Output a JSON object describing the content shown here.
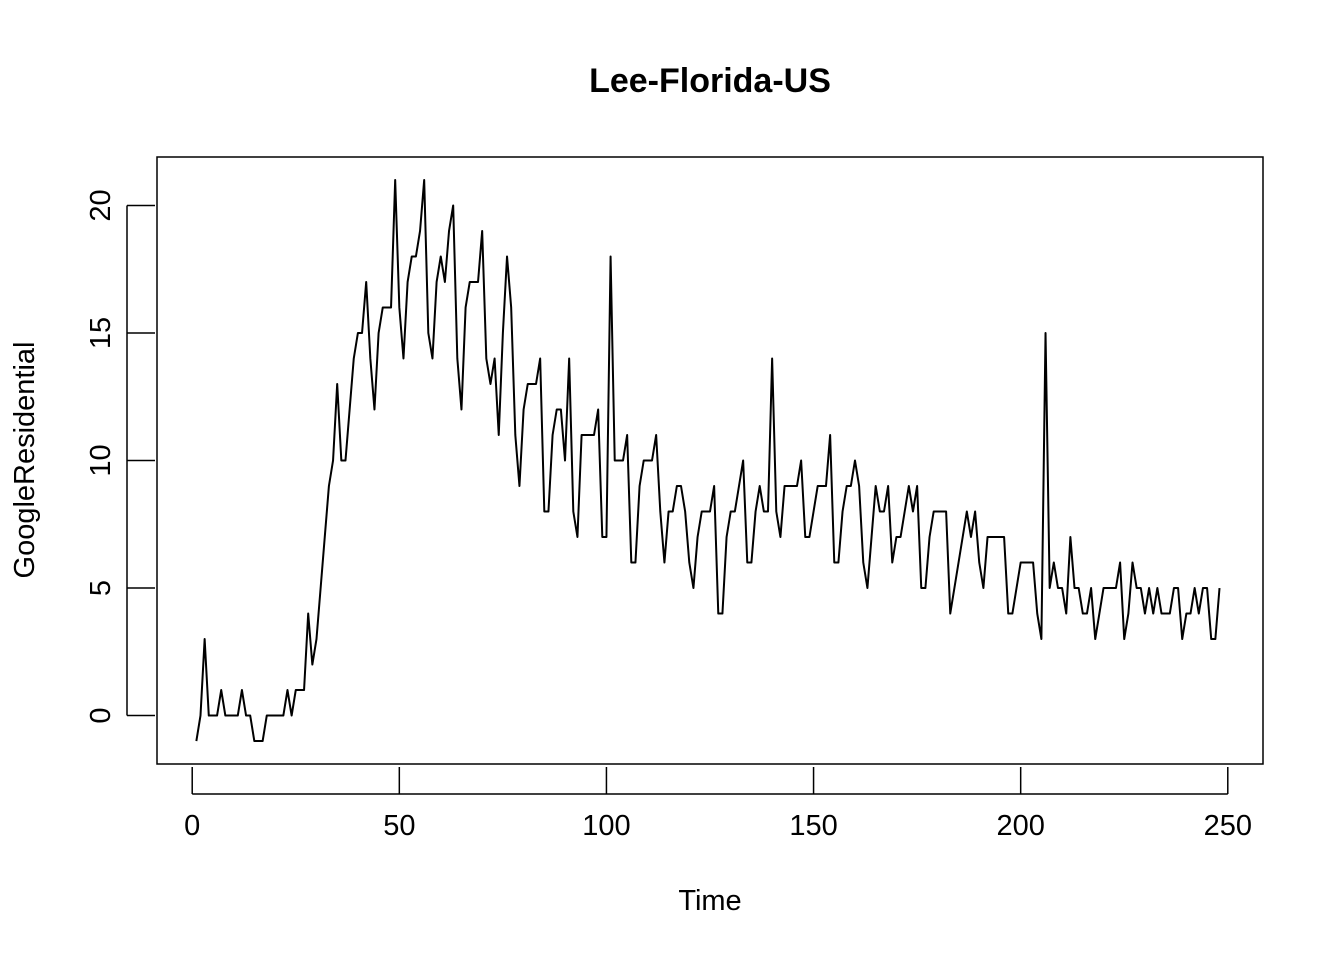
{
  "chart_data": {
    "type": "line",
    "title": "Lee-Florida-US",
    "xlabel": "Time",
    "ylabel": "GoogleResidential",
    "xlim": [
      -8.5,
      258.5
    ],
    "ylim": [
      -1.9,
      21.9
    ],
    "x_ticks": [
      0,
      50,
      100,
      150,
      200,
      250
    ],
    "y_ticks": [
      0,
      5,
      10,
      15,
      20
    ],
    "grid": false,
    "series": [
      {
        "x_start": 1,
        "values": [
          -1,
          0,
          3,
          0,
          0,
          0,
          1,
          0,
          0,
          0,
          0,
          1,
          0,
          0,
          -1,
          -1,
          -1,
          0,
          0,
          0,
          0,
          0,
          1,
          0,
          1,
          1,
          1,
          4,
          2,
          3,
          5,
          7,
          9,
          10,
          13,
          10,
          10,
          12,
          14,
          15,
          15,
          17,
          14,
          12,
          15,
          16,
          16,
          16,
          21,
          16,
          14,
          17,
          18,
          18,
          19,
          21,
          15,
          14,
          17,
          18,
          17,
          19,
          20,
          14,
          12,
          16,
          17,
          17,
          17,
          19,
          14,
          13,
          14,
          11,
          15,
          18,
          16,
          11,
          9,
          12,
          13,
          13,
          13,
          14,
          8,
          8,
          11,
          12,
          12,
          10,
          14,
          8,
          7,
          11,
          11,
          11,
          11,
          12,
          7,
          7,
          18,
          10,
          10,
          10,
          11,
          6,
          6,
          9,
          10,
          10,
          10,
          11,
          8,
          6,
          8,
          8,
          9,
          9,
          8,
          6,
          5,
          7,
          8,
          8,
          8,
          9,
          4,
          4,
          7,
          8,
          8,
          9,
          10,
          6,
          6,
          8,
          9,
          8,
          8,
          14,
          8,
          7,
          9,
          9,
          9,
          9,
          10,
          7,
          7,
          8,
          9,
          9,
          9,
          11,
          6,
          6,
          8,
          9,
          9,
          10,
          9,
          6,
          5,
          7,
          9,
          8,
          8,
          9,
          6,
          7,
          7,
          8,
          9,
          8,
          9,
          5,
          5,
          7,
          8,
          8,
          8,
          8,
          4,
          5,
          6,
          7,
          8,
          7,
          8,
          6,
          5,
          7,
          7,
          7,
          7,
          7,
          4,
          4,
          5,
          6,
          6,
          6,
          6,
          4,
          3,
          15,
          5,
          6,
          5,
          5,
          4,
          7,
          5,
          5,
          4,
          4,
          5,
          3,
          4,
          5,
          5,
          5,
          5,
          6,
          3,
          4,
          6,
          5,
          5,
          4,
          5,
          4,
          5,
          4,
          4,
          4,
          5,
          5,
          3,
          4,
          4,
          5,
          4,
          5,
          5,
          3,
          3,
          5
        ]
      }
    ]
  }
}
